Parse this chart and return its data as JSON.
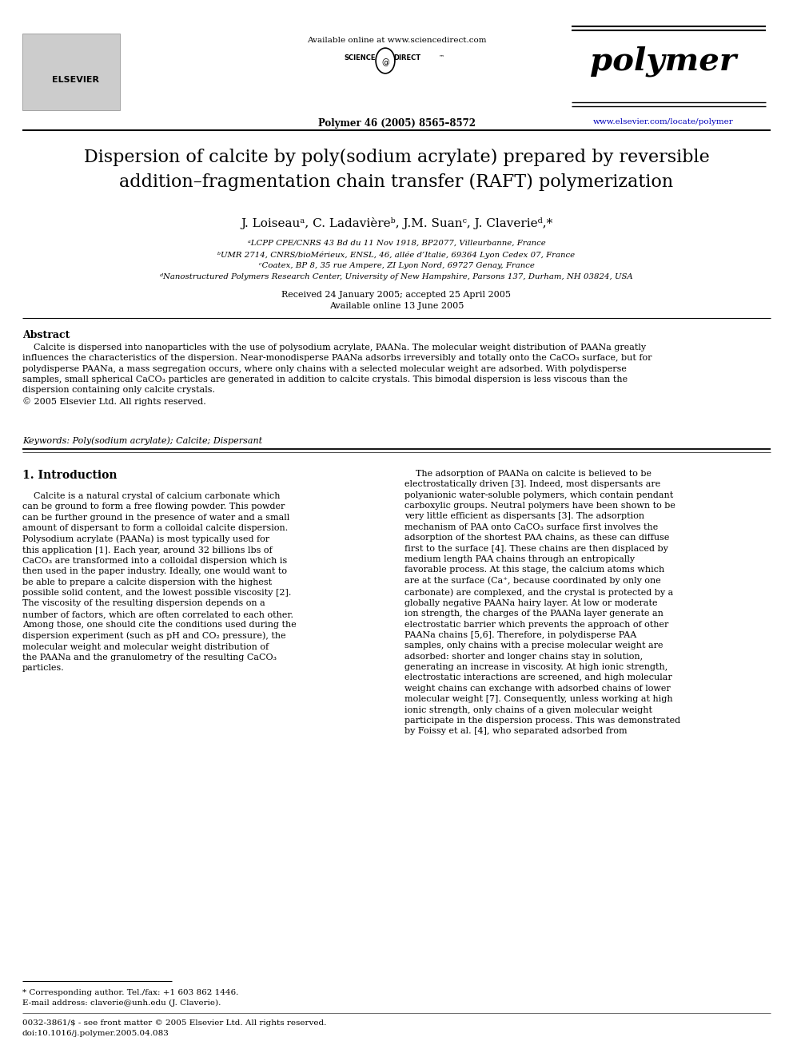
{
  "fig_width": 9.92,
  "fig_height": 13.23,
  "bg_color": "#ffffff",
  "header_online": "Available online at www.sciencedirect.com",
  "header_journal": "polymer",
  "header_citation": "Polymer 46 (2005) 8565–8572",
  "header_url": "www.elsevier.com/locate/polymer",
  "elsevier_label": "ELSEVIER",
  "title": "Dispersion of calcite by poly(sodium acrylate) prepared by reversible\naddition–fragmentation chain transfer (RAFT) polymerization",
  "authors": "J. Loiseauᵃ, C. Ladavièreᵇ, J.M. Suanᶜ, J. Claverieᵈ,*",
  "affiliations": [
    "ᵃLCPP CPE/CNRS 43 Bd du 11 Nov 1918, BP2077, Villeurbanne, France",
    "ᵇUMR 2714, CNRS/bioMérieux, ENSL, 46, allée d’Italie, 69364 Lyon Cedex 07, France",
    "ᶜCoatex, BP 8, 35 rue Ampere, ZI Lyon Nord, 69727 Genay, France",
    "ᵈNanostructured Polymers Research Center, University of New Hampshire, Parsons 137, Durham, NH 03824, USA"
  ],
  "received": "Received 24 January 2005; accepted 25 April 2005",
  "available_online": "Available online 13 June 2005",
  "abstract_title": "Abstract",
  "abstract_body": "    Calcite is dispersed into nanoparticles with the use of polysodium acrylate, PAANa. The molecular weight distribution of PAANa greatly\ninfluences the characteristics of the dispersion. Near-monodisperse PAANa adsorbs irreversibly and totally onto the CaCO₃ surface, but for\npolydisperse PAANa, a mass segregation occurs, where only chains with a selected molecular weight are adsorbed. With polydisperse\nsamples, small spherical CaCO₃ particles are generated in addition to calcite crystals. This bimodal dispersion is less viscous than the\ndispersion containing only calcite crystals.\n© 2005 Elsevier Ltd. All rights reserved.",
  "keywords": "Keywords: Poly(sodium acrylate); Calcite; Dispersant",
  "intro_title": "1. Introduction",
  "intro_left": "    Calcite is a natural crystal of calcium carbonate which\ncan be ground to form a free flowing powder. This powder\ncan be further ground in the presence of water and a small\namount of dispersant to form a colloidal calcite dispersion.\nPolysodium acrylate (PAANa) is most typically used for\nthis application [1]. Each year, around 32 billions lbs of\nCaCO₃ are transformed into a colloidal dispersion which is\nthen used in the paper industry. Ideally, one would want to\nbe able to prepare a calcite dispersion with the highest\npossible solid content, and the lowest possible viscosity [2].\nThe viscosity of the resulting dispersion depends on a\nnumber of factors, which are often correlated to each other.\nAmong those, one should cite the conditions used during the\ndispersion experiment (such as pH and CO₂ pressure), the\nmolecular weight and molecular weight distribution of\nthe PAANa and the granulometry of the resulting CaCO₃\nparticles.",
  "intro_right": "    The adsorption of PAANa on calcite is believed to be\nelectrostatically driven [3]. Indeed, most dispersants are\npolyanionic water-soluble polymers, which contain pendant\ncarboxylic groups. Neutral polymers have been shown to be\nvery little efficient as dispersants [3]. The adsorption\nmechanism of PAA onto CaCO₃ surface first involves the\nadsorption of the shortest PAA chains, as these can diffuse\nfirst to the surface [4]. These chains are then displaced by\nmedium length PAA chains through an entropically\nfavorable process. At this stage, the calcium atoms which\nare at the surface (Ca⁺, because coordinated by only one\ncarbonate) are complexed, and the crystal is protected by a\nglobally negative PAANa hairy layer. At low or moderate\nion strength, the charges of the PAANa layer generate an\nelectrostatic barrier which prevents the approach of other\nPAANa chains [5,6]. Therefore, in polydisperse PAA\nsamples, only chains with a precise molecular weight are\nadsorbed: shorter and longer chains stay in solution,\ngenerating an increase in viscosity. At high ionic strength,\nelectrostatic interactions are screened, and high molecular\nweight chains can exchange with adsorbed chains of lower\nmolecular weight [7]. Consequently, unless working at high\nionic strength, only chains of a given molecular weight\nparticipate in the dispersion process. This was demonstrated\nby Foissy et al. [4], who separated adsorbed from",
  "footnote1": "* Corresponding author. Tel./fax: +1 603 862 1446.",
  "footnote2": "E-mail address: claverie@unh.edu (J. Claverie).",
  "footnote3": "0032-3861/$ - see front matter © 2005 Elsevier Ltd. All rights reserved.",
  "footnote4": "doi:10.1016/j.polymer.2005.04.083"
}
